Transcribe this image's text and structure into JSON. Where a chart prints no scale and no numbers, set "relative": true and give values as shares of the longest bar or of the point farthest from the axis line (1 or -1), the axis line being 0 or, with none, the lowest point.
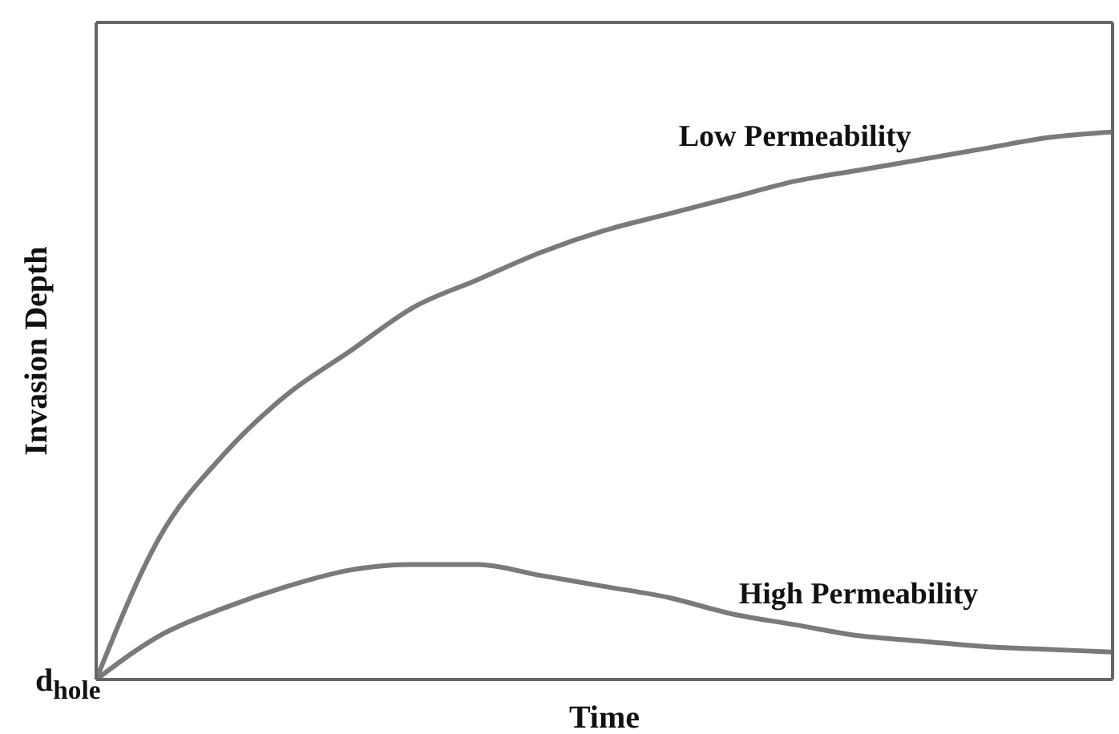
{
  "chart_data": {
    "type": "line",
    "relative": true,
    "xlabel": "Time",
    "ylabel": "Invasion Depth",
    "annotations": [
      "d$_{hole}$"
    ],
    "categories": [
      null,
      null,
      null,
      null,
      null,
      null,
      null,
      null,
      null,
      null,
      null,
      null,
      null,
      null,
      null,
      null,
      null
    ],
    "marker": "none",
    "line_style": "solid",
    "legend": false,
    "grid": false,
    "series": [
      {
        "name": "Low Permeability",
        "color": "#7a7a7a",
        "values": [
          0,
          0.26,
          0.41,
          0.52,
          0.6,
          0.68,
          0.73,
          0.78,
          0.82,
          0.85,
          0.88,
          0.91,
          0.93,
          0.95,
          0.97,
          0.99,
          1
        ]
      },
      {
        "name": "High Permeability",
        "color": "#7a7a7a",
        "values": [
          0,
          0.08,
          0.13,
          0.17,
          0.2,
          0.21,
          0.21,
          0.19,
          0.17,
          0.15,
          0.12,
          0.1,
          0.08,
          0.07,
          0.06,
          0.055,
          0.05
        ]
      }
    ]
  }
}
